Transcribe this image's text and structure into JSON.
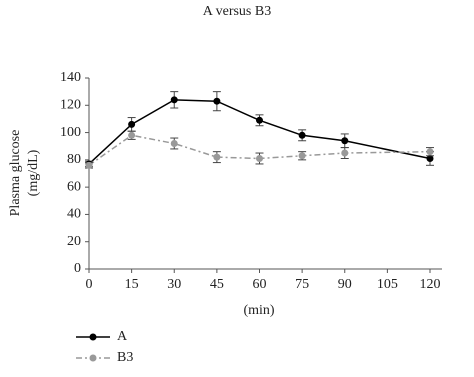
{
  "chart_data": {
    "type": "line",
    "title": "A versus B3",
    "ylabel": [
      "Plasma glucose",
      "(mg/dL)"
    ],
    "xlabel": "(min)",
    "x": [
      0,
      15,
      30,
      45,
      60,
      75,
      90,
      120
    ],
    "xlim": [
      0,
      120
    ],
    "xticks": [
      0,
      15,
      30,
      45,
      60,
      75,
      90,
      105,
      120
    ],
    "ylim": [
      0,
      140
    ],
    "yticks": [
      0,
      20,
      40,
      60,
      80,
      100,
      120,
      140
    ],
    "series": [
      {
        "name": "A",
        "color": "#000000",
        "dash": false,
        "values": [
          77,
          106,
          124,
          123,
          109,
          98,
          94,
          81
        ],
        "errors": [
          2,
          5,
          6,
          7,
          4,
          4,
          5,
          5
        ]
      },
      {
        "name": "B3",
        "color": "#999999",
        "dash": true,
        "values": [
          76,
          98,
          92,
          82,
          81,
          83,
          85,
          86
        ],
        "errors": [
          2,
          3,
          4,
          4,
          4,
          3,
          4,
          3
        ]
      }
    ]
  }
}
